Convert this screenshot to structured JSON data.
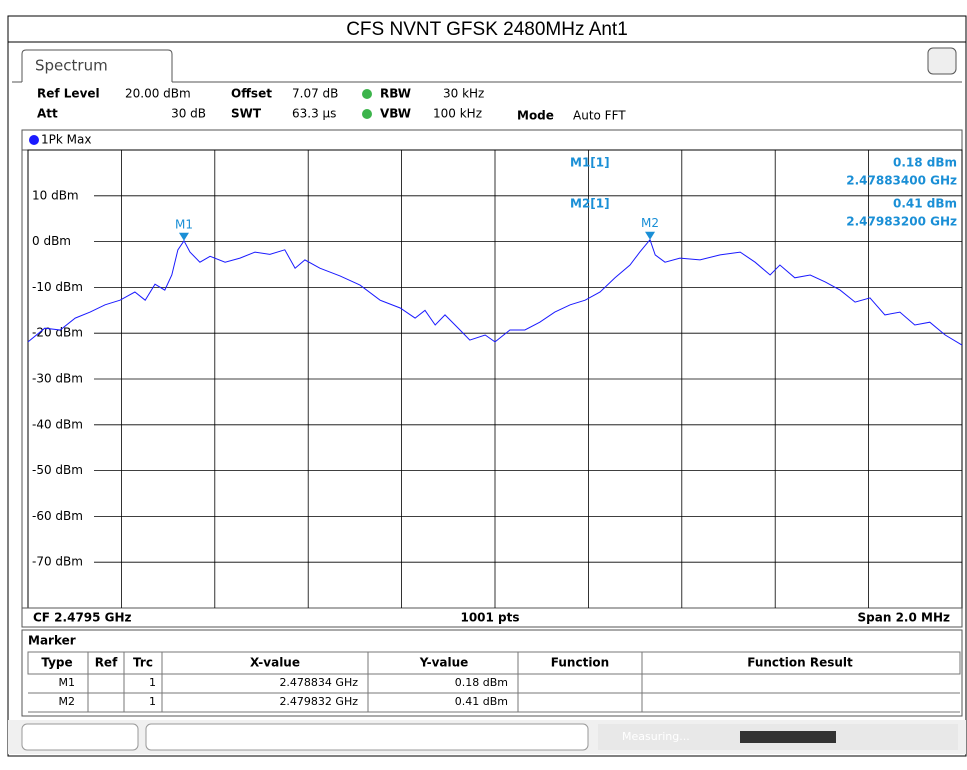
{
  "title": "CFS NVNT GFSK 2480MHz Ant1",
  "tab": "Spectrum",
  "settings": {
    "ref_level_label": "Ref Level",
    "ref_level": "20.00 dBm",
    "offset_label": "Offset",
    "offset": "7.07 dB",
    "rbw_label": "RBW",
    "rbw": "30 kHz",
    "att_label": "Att",
    "att": "30 dB",
    "swt_label": "SWT",
    "swt": "63.3 µs",
    "vbw_label": "VBW",
    "vbw": "100 kHz",
    "mode_label": "Mode",
    "mode": "Auto FFT"
  },
  "trace_label": "1Pk Max",
  "footer": {
    "cf": "CF 2.4795 GHz",
    "pts": "1001 pts",
    "span": "Span 2.0 MHz"
  },
  "chart_data": {
    "type": "line",
    "xlim": [
      2.4785,
      2.4805
    ],
    "xticks": [
      2.4787,
      2.4789,
      2.4791,
      2.4793,
      2.4795,
      2.4797,
      2.4799,
      2.4801,
      2.4803
    ],
    "ylim": [
      -80,
      20
    ],
    "yticks": [
      {
        "value": 10,
        "label": "10 dBm"
      },
      {
        "value": 0,
        "label": "0 dBm"
      },
      {
        "value": -10,
        "label": "-10 dBm"
      },
      {
        "value": -20,
        "label": "-20 dBm"
      },
      {
        "value": -30,
        "label": "-30 dBm"
      },
      {
        "value": -40,
        "label": "-40 dBm"
      },
      {
        "value": -50,
        "label": "-50 dBm"
      },
      {
        "value": -60,
        "label": "-60 dBm"
      },
      {
        "value": -70,
        "label": "-70 dBm"
      }
    ],
    "grid": true,
    "series": [
      {
        "name": "1Pk Max",
        "color": "#1a1aff",
        "x": [
          2.4785,
          2.478536,
          2.478569,
          2.478601,
          2.478633,
          2.478665,
          2.478697,
          2.478729,
          2.478751,
          2.478772,
          2.478793,
          2.478808,
          2.478821,
          2.478834,
          2.478847,
          2.478868,
          2.47889,
          2.478922,
          2.478954,
          2.478986,
          2.479018,
          2.47905,
          2.479072,
          2.479093,
          2.479125,
          2.479168,
          2.479211,
          2.479254,
          2.479297,
          2.479329,
          2.47935,
          2.479372,
          2.479393,
          2.479425,
          2.479446,
          2.479479,
          2.4795,
          2.479532,
          2.479564,
          2.479596,
          2.479628,
          2.479661,
          2.479693,
          2.479725,
          2.479757,
          2.479789,
          2.47981,
          2.479832,
          2.479843,
          2.479864,
          2.479896,
          2.479939,
          2.479982,
          2.480025,
          2.480057,
          2.480089,
          2.48011,
          2.480142,
          2.480175,
          2.480207,
          2.480239,
          2.480271,
          2.480303,
          2.480335,
          2.480367,
          2.480399,
          2.480431,
          2.480464,
          2.4805
        ],
        "values": [
          -21.9,
          -18.9,
          -19.3,
          -16.7,
          -15.4,
          -13.8,
          -12.8,
          -11.0,
          -12.8,
          -9.3,
          -10.6,
          -7.3,
          -1.8,
          0.18,
          -2.3,
          -4.5,
          -3.2,
          -4.5,
          -3.6,
          -2.3,
          -2.8,
          -1.8,
          -5.8,
          -4.0,
          -5.8,
          -7.5,
          -9.5,
          -12.8,
          -14.5,
          -16.7,
          -15.0,
          -18.2,
          -16.0,
          -19.3,
          -21.5,
          -20.4,
          -21.9,
          -19.3,
          -19.3,
          -17.6,
          -15.4,
          -13.8,
          -12.8,
          -11.0,
          -7.9,
          -5.1,
          -2.3,
          0.41,
          -2.9,
          -4.5,
          -3.6,
          -4.0,
          -2.9,
          -2.3,
          -4.5,
          -7.3,
          -5.1,
          -7.9,
          -7.3,
          -8.8,
          -10.6,
          -13.2,
          -12.3,
          -16.0,
          -15.4,
          -18.2,
          -17.6,
          -20.4,
          -22.6
        ]
      }
    ],
    "markers": [
      {
        "name": "M1",
        "x": 2.478834,
        "y": 0.18,
        "readout": "M1[1]",
        "y_label": "0.18 dBm",
        "x_label": "2.47883400 GHz"
      },
      {
        "name": "M2",
        "x": 2.479832,
        "y": 0.41,
        "readout": "M2[1]",
        "y_label": "0.41 dBm",
        "x_label": "2.47983200 GHz"
      }
    ],
    "marker_color": "#1a8fd6"
  },
  "marker_table": {
    "title": "Marker",
    "columns": [
      "Type",
      "Ref",
      "Trc",
      "X-value",
      "Y-value",
      "Function",
      "Function Result"
    ],
    "rows": [
      {
        "type": "M1",
        "trc": "1",
        "x_value": "2.478834 GHz",
        "y_value": "0.18 dBm"
      },
      {
        "type": "M2",
        "trc": "1",
        "x_value": "2.479832 GHz",
        "y_value": "0.41 dBm"
      }
    ]
  },
  "status": "Measuring..."
}
